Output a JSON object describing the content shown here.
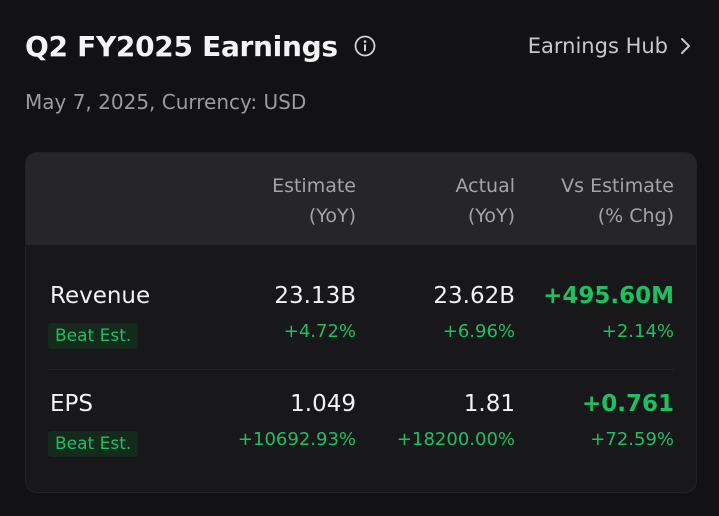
{
  "header": {
    "title": "Q2 FY2025 Earnings",
    "info_icon": "info-icon",
    "hub_link": "Earnings Hub",
    "chevron_icon": "chevron-right-icon"
  },
  "subtitle": "May 7, 2025, Currency: USD",
  "table": {
    "columns": [
      {
        "line1": "Estimate",
        "line2": "(YoY)"
      },
      {
        "line1": "Actual",
        "line2": "(YoY)"
      },
      {
        "line1": "Vs Estimate",
        "line2": "(% Chg)"
      }
    ],
    "rows": [
      {
        "name": "Revenue",
        "badge": "Beat Est.",
        "estimate": "23.13B",
        "estimate_yoy": "+4.72%",
        "actual": "23.62B",
        "actual_yoy": "+6.96%",
        "vs_estimate": "+495.60M",
        "vs_estimate_pct": "+2.14%"
      },
      {
        "name": "EPS",
        "badge": "Beat Est.",
        "estimate": "1.049",
        "estimate_yoy": "+10692.93%",
        "actual": "1.81",
        "actual_yoy": "+18200.00%",
        "vs_estimate": "+0.761",
        "vs_estimate_pct": "+72.59%"
      }
    ]
  },
  "colors": {
    "background": "#121214",
    "card": "#18181b",
    "card_header": "#26262a",
    "positive": "#1fbf62",
    "badge_bg": "#142a1d",
    "muted_text": "#9a9aa0"
  }
}
